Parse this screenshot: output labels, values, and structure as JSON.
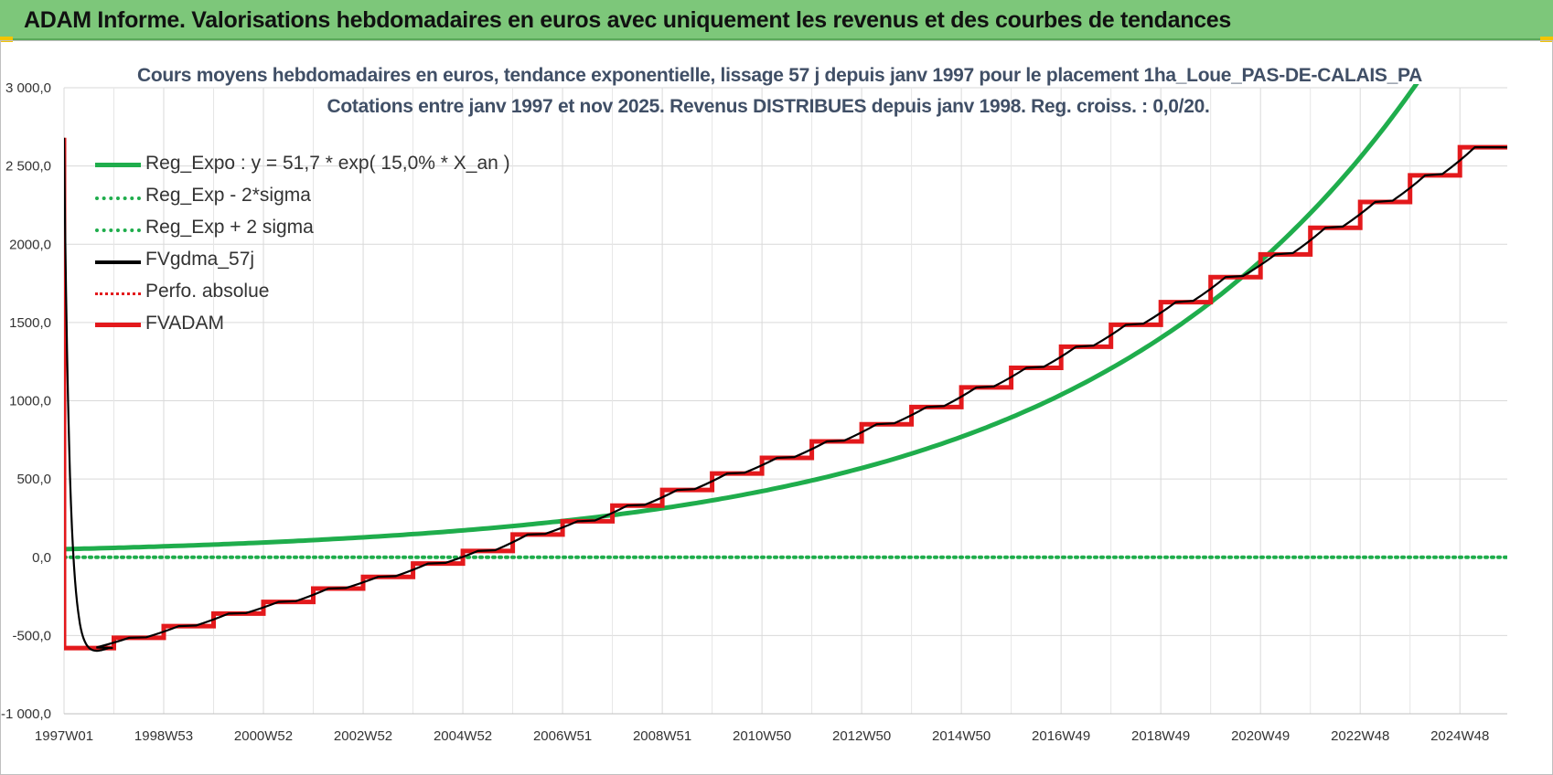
{
  "header": {
    "title": "ADAM Informe. Valorisations hebdomadaires en euros avec uniquement les revenus et des courbes de tendances"
  },
  "colors": {
    "banner": "#7dc77a",
    "reg_expo": "#1fad4c",
    "fv_gdma": "#000000",
    "fvadam": "#e3191c",
    "perfo": "#e3191c",
    "grid": "#d9d9d9"
  },
  "chart_data": {
    "type": "line",
    "title": "Cours moyens hebdomadaires en euros, tendance exponentielle, lissage 57 j depuis janv 1997 pour le placement 1ha_Loue_PAS-DE-CALAIS_PA",
    "subtitle": "Cotations entre janv 1997 et nov 2025. Revenus DISTRIBUES depuis janv 1998. Reg. croiss. : 0,0/20.",
    "x_ticks": [
      "1997W01",
      "1998W53",
      "2000W52",
      "2002W52",
      "2004W52",
      "2006W51",
      "2008W51",
      "2010W50",
      "2012W50",
      "2014W50",
      "2016W49",
      "2018W49",
      "2020W49",
      "2022W48",
      "2024W48"
    ],
    "x_range": [
      1997.0,
      2025.95
    ],
    "ylim": [
      -1000,
      3000
    ],
    "y_ticks": [
      "3 000,0",
      "2 500,0",
      "2000,0",
      "1500,0",
      "1000,0",
      "500,0",
      "0,0",
      "-500,0",
      "-1 000,0"
    ],
    "y_tick_values": [
      3000,
      2500,
      2000,
      1500,
      1000,
      500,
      0,
      -500,
      -1000
    ],
    "grid": true,
    "legend_position": "top-left",
    "series": [
      {
        "name": "Reg_Expo : y = 51,7 * exp( 15,0% *  X_an )",
        "style": "solid-thick",
        "color": "#1fad4c",
        "a": 51.7,
        "rate": 0.15
      },
      {
        "name": "Reg_Exp - 2*sigma",
        "style": "dotted",
        "color": "#1fad4c"
      },
      {
        "name": "Reg_Exp + 2 sigma",
        "style": "dotted",
        "color": "#1fad4c"
      },
      {
        "name": "FVgdma_57j",
        "style": "solid",
        "color": "#000000"
      },
      {
        "name": "Perfo. absolue",
        "style": "dotted",
        "color": "#e3191c",
        "values": [
          0,
          0
        ]
      },
      {
        "name": "FVADAM",
        "style": "solid-thick",
        "color": "#e3191c",
        "x": [
          1997.0,
          1997.0,
          1998.0,
          1999.0,
          2000.0,
          2001.0,
          2002.0,
          2003.0,
          2004.0,
          2005.0,
          2006.0,
          2007.0,
          2008.0,
          2009.0,
          2010.0,
          2011.0,
          2012.0,
          2013.0,
          2014.0,
          2015.0,
          2016.0,
          2017.0,
          2018.0,
          2019.0,
          2020.0,
          2021.0,
          2022.0,
          2023.0,
          2024.0,
          2025.0
        ],
        "values": [
          2680,
          -580,
          -515,
          -440,
          -360,
          -285,
          -200,
          -125,
          -40,
          40,
          145,
          230,
          330,
          430,
          535,
          635,
          740,
          850,
          960,
          1085,
          1210,
          1345,
          1485,
          1630,
          1790,
          1935,
          2105,
          2270,
          2440,
          2620
        ]
      }
    ]
  }
}
